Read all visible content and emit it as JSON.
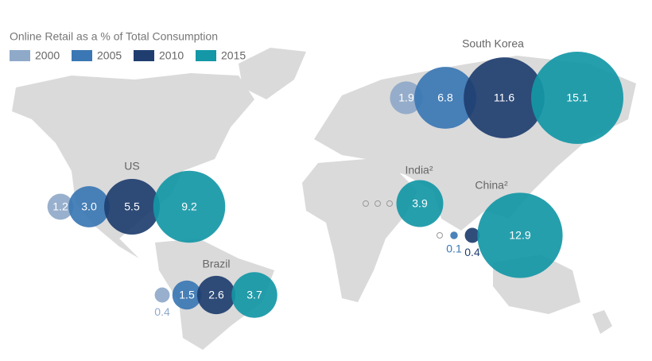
{
  "chart_data": {
    "type": "bubble-map",
    "title": "Online Retail as a % of Total Consumption",
    "legend": [
      {
        "name": "2000",
        "color": "#8fa9c9"
      },
      {
        "name": "2005",
        "color": "#3b77b4"
      },
      {
        "name": "2010",
        "color": "#1f3e6f"
      },
      {
        "name": "2015",
        "color": "#1497a6"
      }
    ],
    "countries": [
      {
        "name": "US",
        "values": [
          1.2,
          3,
          5.5,
          9.2
        ],
        "value_labels": [
          "1.2",
          "3.0",
          "5.5",
          "9.2"
        ]
      },
      {
        "name": "Brazil",
        "values": [
          0.4,
          1.5,
          2.6,
          3.7
        ],
        "value_labels": [
          "0.4",
          "1.5",
          "2.6",
          "3.7"
        ]
      },
      {
        "name": "South Korea",
        "values": [
          1.9,
          6.8,
          11.6,
          15.1
        ],
        "value_labels": [
          "1.9",
          "6.8",
          "11.6",
          "15.1"
        ]
      },
      {
        "name": "India²",
        "values": [
          null,
          null,
          null,
          3.9
        ],
        "value_labels": [
          null,
          null,
          null,
          "3.9"
        ]
      },
      {
        "name": "China²",
        "values": [
          null,
          0.1,
          0.4,
          12.9
        ],
        "value_labels": [
          null,
          "0.1",
          "0.4",
          "12.9"
        ]
      }
    ]
  }
}
